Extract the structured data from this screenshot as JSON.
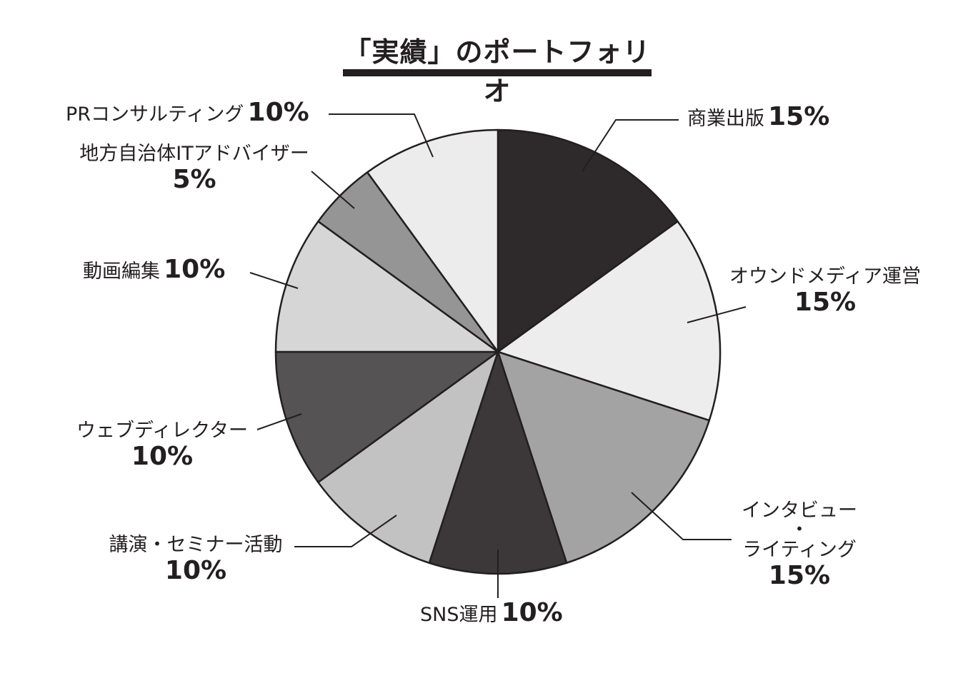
{
  "chart_data": {
    "type": "pie",
    "title": "「実績」のポートフォリオ",
    "start_angle_deg": 0,
    "direction": "clockwise",
    "slices": [
      {
        "label": "商業出版",
        "value": 15,
        "display": "15%",
        "color": "#2e2a2b"
      },
      {
        "label": "オウンドメディア運営",
        "value": 15,
        "display": "15%",
        "color": "#ededed"
      },
      {
        "label": "インタビュー・ライティング",
        "value": 15,
        "display": "15%",
        "color": "#a3a3a3"
      },
      {
        "label": "SNS運用",
        "value": 10,
        "display": "10%",
        "color": "#3c3839"
      },
      {
        "label": "講演・セミナー活動",
        "value": 10,
        "display": "10%",
        "color": "#c2c2c2"
      },
      {
        "label": "ウェブディレクター",
        "value": 10,
        "display": "10%",
        "color": "#555354"
      },
      {
        "label": "動画編集",
        "value": 10,
        "display": "10%",
        "color": "#d6d6d6"
      },
      {
        "label": "地方自治体ITアドバイザー",
        "value": 5,
        "display": "5%",
        "color": "#959595"
      },
      {
        "label": "PRコンサルティング",
        "value": 10,
        "display": "10%",
        "color": "#ececec"
      }
    ]
  },
  "labels": {
    "s0": {
      "name": "商業出版",
      "pct": "15%"
    },
    "s1": {
      "name": "オウンドメディア運営",
      "pct": "15%"
    },
    "s2": {
      "name_line1": "インタビュー",
      "name_line2": "・",
      "name_line3": "ライティング",
      "pct": "15%"
    },
    "s3": {
      "name": "SNS運用",
      "pct": "10%"
    },
    "s4": {
      "name": "講演・セミナー活動",
      "pct": "10%"
    },
    "s5": {
      "name": "ウェブディレクター",
      "pct": "10%"
    },
    "s6": {
      "name": "動画編集",
      "pct": "10%"
    },
    "s7": {
      "name": "地方自治体ITアドバイザー",
      "pct": "5%"
    },
    "s8": {
      "name": "PRコンサルティング",
      "pct": "10%"
    }
  },
  "colors": {
    "ink": "#231f20",
    "background": "#ffffff"
  }
}
